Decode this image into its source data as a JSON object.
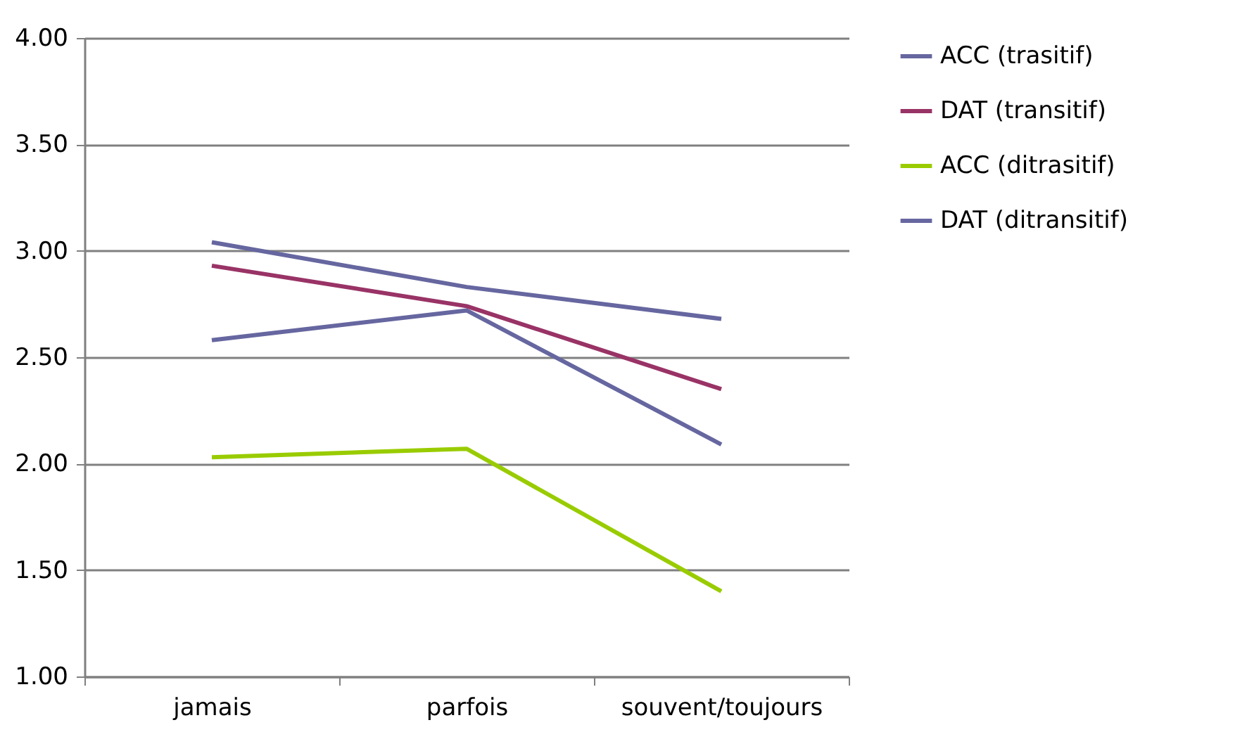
{
  "chart_data": {
    "type": "line",
    "categories": [
      "jamais",
      "parfois",
      "souvent/toujours"
    ],
    "series": [
      {
        "name": "ACC (trasitif)",
        "color": "#6666a0",
        "values": [
          3.04,
          2.83,
          2.68
        ]
      },
      {
        "name": "DAT (transitif)",
        "color": "#993366",
        "values": [
          2.93,
          2.74,
          2.35
        ]
      },
      {
        "name": "ACC (ditrasitif)",
        "color": "#99cc00",
        "values": [
          2.03,
          2.07,
          1.4
        ]
      },
      {
        "name": "DAT (ditransitif)",
        "color": "#6666a0",
        "values": [
          2.58,
          2.72,
          2.09
        ]
      }
    ],
    "ylim": [
      1,
      4
    ],
    "yticks": [
      {
        "value": 1,
        "label": "1.00"
      },
      {
        "value": 1.5,
        "label": "1.50"
      },
      {
        "value": 2,
        "label": "2.00"
      },
      {
        "value": 2.5,
        "label": "2.50"
      },
      {
        "value": 3,
        "label": "3.00"
      },
      {
        "value": 3.5,
        "label": "3.50"
      },
      {
        "value": 4,
        "label": "4.00"
      }
    ],
    "grid": "y",
    "legend": "right",
    "line_style": "solid",
    "marker": "none"
  }
}
